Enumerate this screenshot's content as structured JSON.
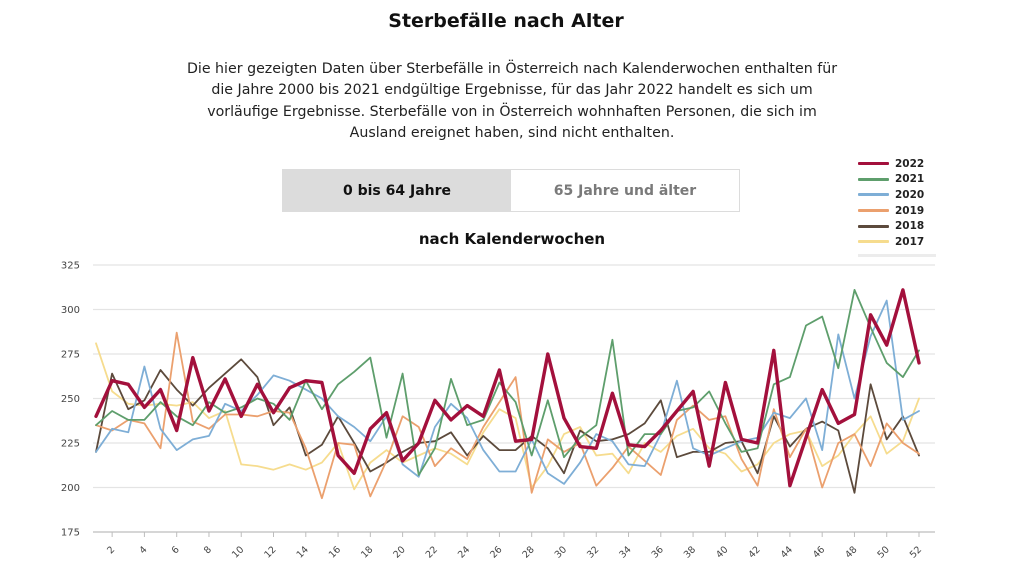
{
  "header": {
    "title": "Sterbefälle nach Alter",
    "intro": "Die hier gezeigten Daten über Sterbefälle in Österreich nach Kalenderwochen enthalten für die Jahre 2000 bis 2021 endgültige Ergebnisse, für das Jahr 2022 handelt es sich um vorläufige Ergebnisse. Sterbefälle von in Österreich wohnhaften Personen, die sich im Ausland ereignet haben, sind nicht enthalten."
  },
  "tabs": [
    {
      "label": "0 bis 64 Jahre",
      "active": true
    },
    {
      "label": "65 Jahre und älter",
      "active": false
    }
  ],
  "chart_subtitle": "nach Kalenderwochen",
  "colors": {
    "2022": "#a3103c",
    "2021": "#5e9e6c",
    "2020": "#7eaed6",
    "2019": "#eba06e",
    "2018": "#5c4a3c",
    "2017": "#f6dc8e"
  },
  "chart_data": {
    "type": "line",
    "xlabel": "",
    "ylabel": "",
    "ylim": [
      175,
      325
    ],
    "yticks": [
      175,
      200,
      225,
      250,
      275,
      300,
      325
    ],
    "xlim": [
      1,
      52
    ],
    "xticks": [
      2,
      4,
      6,
      8,
      10,
      12,
      14,
      16,
      18,
      20,
      22,
      24,
      26,
      28,
      30,
      32,
      34,
      36,
      38,
      40,
      42,
      44,
      46,
      48,
      50,
      52
    ],
    "grid": true,
    "legend_position": "top-right",
    "series": [
      {
        "name": "2022",
        "values": [
          240,
          260,
          258,
          245,
          255,
          232,
          273,
          243,
          261,
          240,
          258,
          242,
          256,
          260,
          259,
          218,
          208,
          233,
          242,
          215,
          225,
          249,
          238,
          246,
          240,
          266,
          226,
          227,
          275,
          239,
          223,
          222,
          253,
          224,
          223,
          232,
          243,
          254,
          212,
          259,
          227,
          225,
          277,
          201,
          228,
          255,
          236,
          241,
          297,
          280,
          311,
          270
        ]
      },
      {
        "name": "2021",
        "values": [
          235,
          243,
          238,
          238,
          248,
          240,
          235,
          248,
          242,
          245,
          250,
          247,
          238,
          260,
          244,
          258,
          265,
          273,
          228,
          264,
          207,
          222,
          261,
          235,
          238,
          259,
          248,
          218,
          249,
          217,
          228,
          235,
          283,
          218,
          230,
          230,
          243,
          245,
          254,
          236,
          220,
          222,
          258,
          262,
          291,
          296,
          267,
          311,
          290,
          270,
          262,
          277
        ]
      },
      {
        "name": "2020",
        "values": [
          220,
          233,
          231,
          268,
          233,
          221,
          227,
          229,
          247,
          243,
          252,
          263,
          260,
          255,
          250,
          240,
          234,
          226,
          240,
          213,
          206,
          234,
          247,
          239,
          221,
          209,
          209,
          227,
          208,
          202,
          214,
          230,
          226,
          213,
          212,
          230,
          260,
          222,
          218,
          222,
          226,
          228,
          242,
          239,
          250,
          221,
          286,
          250,
          285,
          305,
          238,
          243
        ]
      },
      {
        "name": "2019",
        "values": [
          235,
          232,
          238,
          236,
          222,
          287,
          237,
          233,
          241,
          241,
          240,
          243,
          242,
          222,
          194,
          225,
          224,
          195,
          215,
          240,
          234,
          212,
          222,
          216,
          234,
          248,
          262,
          197,
          227,
          220,
          225,
          201,
          211,
          223,
          215,
          207,
          238,
          246,
          238,
          240,
          216,
          201,
          244,
          217,
          233,
          200,
          225,
          230,
          212,
          236,
          225,
          219
        ]
      },
      {
        "name": "2018",
        "values": [
          220,
          264,
          244,
          249,
          266,
          255,
          246,
          256,
          264,
          272,
          262,
          235,
          245,
          218,
          224,
          240,
          225,
          209,
          214,
          220,
          225,
          226,
          231,
          218,
          229,
          221,
          221,
          229,
          222,
          208,
          232,
          226,
          227,
          230,
          236,
          249,
          217,
          220,
          220,
          225,
          226,
          208,
          240,
          223,
          233,
          237,
          232,
          197,
          258,
          227,
          240,
          218
        ]
      },
      {
        "name": "2017",
        "values": [
          281,
          254,
          247,
          246,
          247,
          246,
          248,
          239,
          243,
          213,
          212,
          210,
          213,
          210,
          214,
          225,
          199,
          214,
          221,
          214,
          218,
          222,
          219,
          213,
          231,
          244,
          239,
          200,
          212,
          230,
          234,
          218,
          219,
          208,
          225,
          220,
          229,
          233,
          222,
          219,
          209,
          213,
          225,
          230,
          232,
          212,
          218,
          230,
          240,
          219,
          226,
          250
        ]
      }
    ]
  }
}
